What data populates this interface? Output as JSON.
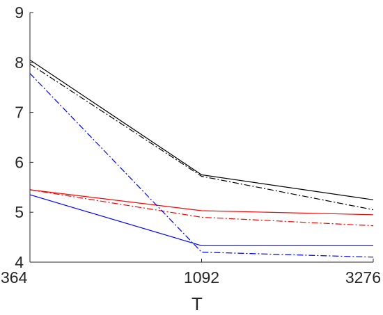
{
  "chart_data": {
    "type": "line",
    "title": "",
    "xlabel": "T",
    "ylabel": "",
    "categories": [
      "364",
      "1092",
      "3276"
    ],
    "ylim": [
      4,
      9
    ],
    "yticks": [
      "4",
      "5",
      "6",
      "7",
      "8",
      "9"
    ],
    "grid": false,
    "series": [
      {
        "color": "#000000",
        "dash": "solid",
        "values": [
          8.05,
          5.75,
          5.25
        ]
      },
      {
        "color": "#000000",
        "dash": "dashdot",
        "values": [
          7.97,
          5.72,
          5.05
        ]
      },
      {
        "color": "#ff0000",
        "dash": "solid",
        "values": [
          5.45,
          5.03,
          4.95
        ]
      },
      {
        "color": "#ff0000",
        "dash": "dashdot",
        "values": [
          5.45,
          4.9,
          4.73
        ]
      },
      {
        "color": "#0000ff",
        "dash": "solid",
        "values": [
          5.35,
          4.33,
          4.33
        ]
      },
      {
        "color": "#0000ff",
        "dash": "dashdot",
        "values": [
          7.78,
          4.2,
          4.1
        ]
      }
    ]
  }
}
